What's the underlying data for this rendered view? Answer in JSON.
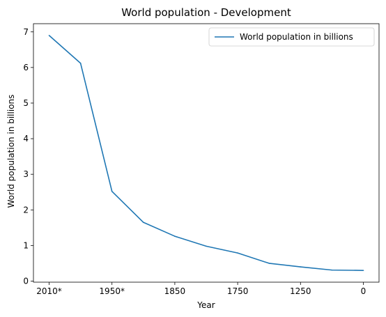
{
  "chart_data": {
    "type": "line",
    "title": "World population - Development",
    "xlabel": "Year",
    "ylabel": "World population in billions",
    "x_tick_labels": [
      "2010*",
      "1950*",
      "1850",
      "1750",
      "1250",
      "0"
    ],
    "y_ticks": [
      0,
      1,
      2,
      3,
      4,
      5,
      6,
      7
    ],
    "ylim": [
      -0.03,
      7.23
    ],
    "grid": false,
    "legend_position": "top-right",
    "series": [
      {
        "name": "World population in billions",
        "color": "#1f77b4",
        "values": [
          6.9,
          6.12,
          2.52,
          1.65,
          1.26,
          0.98,
          0.79,
          0.5,
          0.4,
          0.31,
          0.3
        ]
      }
    ]
  }
}
